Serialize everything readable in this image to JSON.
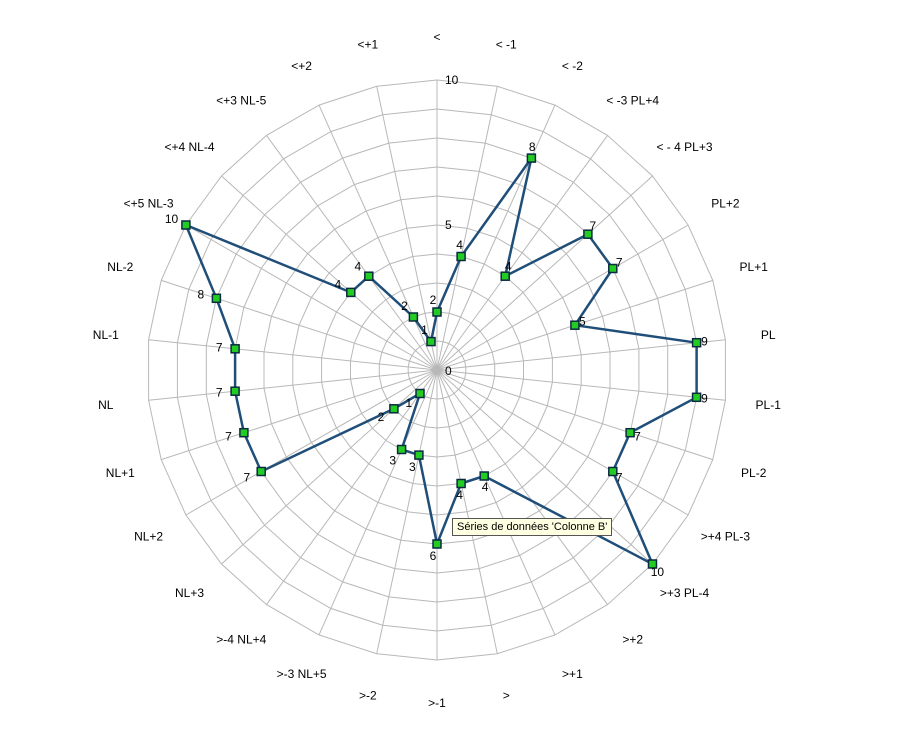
{
  "chart_data": {
    "type": "radar",
    "categories": [
      "<",
      "< -1",
      "< -2",
      "< -3  PL+4",
      "< - 4  PL+3",
      "PL+2",
      "PL+1",
      "PL",
      "PL-1",
      "PL-2",
      ">+4  PL-3",
      ">+3  PL-4",
      ">+2",
      ">+1",
      ">",
      ">-1",
      ">-2",
      ">-3  NL+5",
      ">-4  NL+4",
      "NL+3",
      "NL+2",
      "NL+1",
      "NL",
      "NL-1",
      "NL-2",
      "<+5  NL-3",
      "<+4  NL-4",
      "<+3  NL-5",
      "<+2",
      "<+1"
    ],
    "series": [
      {
        "values": [
          2,
          4,
          8,
          4,
          7,
          7,
          5,
          9,
          9,
          7,
          7,
          10,
          null,
          4,
          4,
          6,
          3,
          3,
          1,
          2,
          7,
          7,
          7,
          7,
          8,
          10,
          4,
          4,
          2,
          1
        ]
      }
    ],
    "rlim": [
      0,
      10
    ],
    "tick_values": [
      0,
      5,
      10
    ],
    "tick_labels": [
      "0",
      "5",
      "10"
    ],
    "grid": true
  },
  "colors": {
    "line": "#1f4e79",
    "marker_fill": "#22cc22",
    "marker_edge": "#0a2a40",
    "grid": "#b8b8b8"
  },
  "tooltip": "Séries de données 'Colonne B'"
}
